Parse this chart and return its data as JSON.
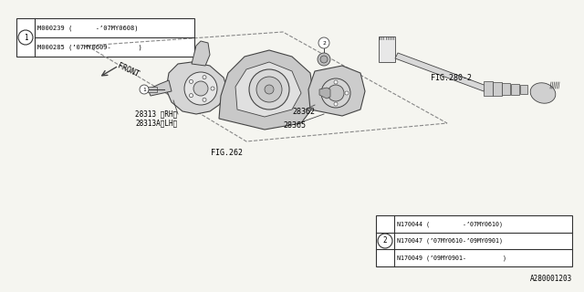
{
  "bg_color": "#f5f5f0",
  "border_color": "#333333",
  "line_color": "#444444",
  "title_diagram": "A280001203",
  "part1_lines": [
    "M000239 (      -’07MY0608)",
    "M000285 (’07MY0609-       )"
  ],
  "part2_lines": [
    "N170044 (         -’07MY0610)",
    "N170047 (’07MY0610-’09MY0901)",
    "N170049 (’09MY0901-          )"
  ],
  "label_fig280": "FIG.280-2",
  "label_fig262": "FIG.262",
  "label_28362": "28362",
  "label_28365": "28365",
  "label_28313": "28313 〈RH〉",
  "label_28313a": "28313A〈LH〉",
  "label_front": "FRONT",
  "circle1_label": "1",
  "circle2_label": "2"
}
